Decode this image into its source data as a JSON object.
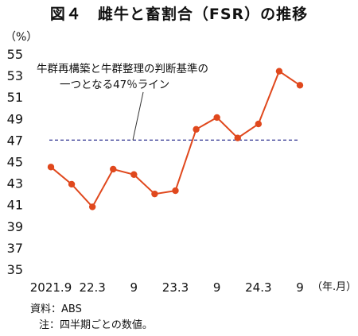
{
  "chart_data": {
    "type": "line",
    "title": "図４　雌牛と畜割合（FSR）の推移",
    "ylabel": "（%）",
    "xlabel": "（年.月）",
    "ylim": [
      35,
      55
    ],
    "yticks": [
      35,
      37,
      39,
      41,
      43,
      45,
      47,
      49,
      51,
      53,
      55
    ],
    "x_tick_labels": [
      "2021.9",
      "22.3",
      "9",
      "23.3",
      "9",
      "24.3",
      "9"
    ],
    "series": [
      {
        "color": "#e0481d",
        "values": [
          44.5,
          42.9,
          40.8,
          44.3,
          43.8,
          42.0,
          42.3,
          48.0,
          49.1,
          47.2,
          48.5,
          53.4,
          52.1
        ]
      }
    ],
    "reference_line": {
      "value": 47,
      "color": "#2b2f8f",
      "style": "dashed",
      "label_line1": "牛群再構築と牛群整理の判断基準の",
      "label_line2": "一つとなる47％ライン"
    },
    "grid": false
  },
  "footer": {
    "source": "資料：ABS",
    "note": "注：四半期ごとの数値。"
  }
}
